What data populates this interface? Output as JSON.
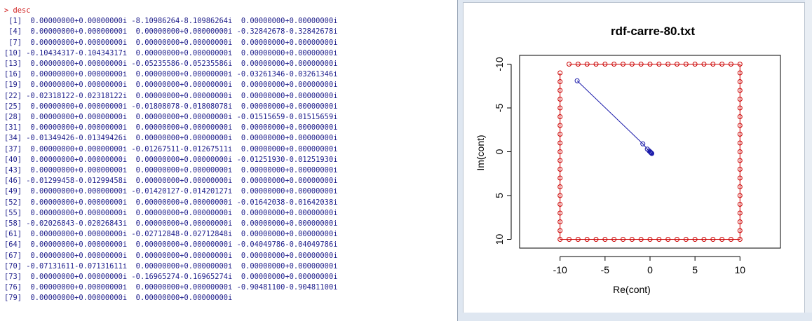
{
  "console": {
    "prompt_symbol": ">",
    "command": "desc",
    "rows": [
      {
        "index": "[1]",
        "values": [
          " 0.00000000+0.00000000i",
          "-8.10986264-8.10986264i",
          " 0.00000000+0.00000000i"
        ]
      },
      {
        "index": "[4]",
        "values": [
          " 0.00000000+0.00000000i",
          " 0.00000000+0.00000000i",
          "-0.32842678-0.32842678i"
        ]
      },
      {
        "index": "[7]",
        "values": [
          " 0.00000000+0.00000000i",
          " 0.00000000+0.00000000i",
          " 0.00000000+0.00000000i"
        ]
      },
      {
        "index": "[10]",
        "values": [
          "-0.10434317-0.10434317i",
          " 0.00000000+0.00000000i",
          " 0.00000000+0.00000000i"
        ]
      },
      {
        "index": "[13]",
        "values": [
          " 0.00000000+0.00000000i",
          "-0.05235586-0.05235586i",
          " 0.00000000+0.00000000i"
        ]
      },
      {
        "index": "[16]",
        "values": [
          " 0.00000000+0.00000000i",
          " 0.00000000+0.00000000i",
          "-0.03261346-0.03261346i"
        ]
      },
      {
        "index": "[19]",
        "values": [
          " 0.00000000+0.00000000i",
          " 0.00000000+0.00000000i",
          " 0.00000000+0.00000000i"
        ]
      },
      {
        "index": "[22]",
        "values": [
          "-0.02318122-0.02318122i",
          " 0.00000000+0.00000000i",
          " 0.00000000+0.00000000i"
        ]
      },
      {
        "index": "[25]",
        "values": [
          " 0.00000000+0.00000000i",
          "-0.01808078-0.01808078i",
          " 0.00000000+0.00000000i"
        ]
      },
      {
        "index": "[28]",
        "values": [
          " 0.00000000+0.00000000i",
          " 0.00000000+0.00000000i",
          "-0.01515659-0.01515659i"
        ]
      },
      {
        "index": "[31]",
        "values": [
          " 0.00000000+0.00000000i",
          " 0.00000000+0.00000000i",
          " 0.00000000+0.00000000i"
        ]
      },
      {
        "index": "[34]",
        "values": [
          "-0.01349426-0.01349426i",
          " 0.00000000+0.00000000i",
          " 0.00000000+0.00000000i"
        ]
      },
      {
        "index": "[37]",
        "values": [
          " 0.00000000+0.00000000i",
          "-0.01267511-0.01267511i",
          " 0.00000000+0.00000000i"
        ]
      },
      {
        "index": "[40]",
        "values": [
          " 0.00000000+0.00000000i",
          " 0.00000000+0.00000000i",
          "-0.01251930-0.01251930i"
        ]
      },
      {
        "index": "[43]",
        "values": [
          " 0.00000000+0.00000000i",
          " 0.00000000+0.00000000i",
          " 0.00000000+0.00000000i"
        ]
      },
      {
        "index": "[46]",
        "values": [
          "-0.01299458-0.01299458i",
          " 0.00000000+0.00000000i",
          " 0.00000000+0.00000000i"
        ]
      },
      {
        "index": "[49]",
        "values": [
          " 0.00000000+0.00000000i",
          "-0.01420127-0.01420127i",
          " 0.00000000+0.00000000i"
        ]
      },
      {
        "index": "[52]",
        "values": [
          " 0.00000000+0.00000000i",
          " 0.00000000+0.00000000i",
          "-0.01642038-0.01642038i"
        ]
      },
      {
        "index": "[55]",
        "values": [
          " 0.00000000+0.00000000i",
          " 0.00000000+0.00000000i",
          " 0.00000000+0.00000000i"
        ]
      },
      {
        "index": "[58]",
        "values": [
          "-0.02026843-0.02026843i",
          " 0.00000000+0.00000000i",
          " 0.00000000+0.00000000i"
        ]
      },
      {
        "index": "[61]",
        "values": [
          " 0.00000000+0.00000000i",
          "-0.02712848-0.02712848i",
          " 0.00000000+0.00000000i"
        ]
      },
      {
        "index": "[64]",
        "values": [
          " 0.00000000+0.00000000i",
          " 0.00000000+0.00000000i",
          "-0.04049786-0.04049786i"
        ]
      },
      {
        "index": "[67]",
        "values": [
          " 0.00000000+0.00000000i",
          " 0.00000000+0.00000000i",
          " 0.00000000+0.00000000i"
        ]
      },
      {
        "index": "[70]",
        "values": [
          "-0.07131611-0.07131611i",
          " 0.00000000+0.00000000i",
          " 0.00000000+0.00000000i"
        ]
      },
      {
        "index": "[73]",
        "values": [
          " 0.00000000+0.00000000i",
          "-0.16965274-0.16965274i",
          " 0.00000000+0.00000000i"
        ]
      },
      {
        "index": "[76]",
        "values": [
          " 0.00000000+0.00000000i",
          " 0.00000000+0.00000000i",
          "-0.90481100-0.90481100i"
        ]
      },
      {
        "index": "[79]",
        "values": [
          " 0.00000000+0.00000000i",
          " 0.00000000+0.00000000i"
        ]
      }
    ]
  },
  "graph": {
    "title": "rdf-carre-80.txt",
    "chart_data": {
      "type": "scatter",
      "title": "rdf-carre-80.txt",
      "xlabel": "Re(cont)",
      "ylabel": "Im(cont)",
      "xlim": [
        -14.5,
        14.5
      ],
      "ylim": [
        -11,
        11
      ],
      "y_axis_reversed": true,
      "xticks": [
        -10,
        -5,
        0,
        5,
        10
      ],
      "yticks": [
        -10,
        -5,
        0,
        5,
        10
      ],
      "xtick_labels": [
        "-10",
        "-5",
        "0",
        "5",
        "10"
      ],
      "ytick_labels": [
        "-10",
        "-5",
        "0",
        "5",
        "10"
      ],
      "grid": false,
      "series": [
        {
          "kind": "square_contour",
          "color": "#cc0000",
          "marker": "open-circle",
          "connected": true,
          "side_min": -10,
          "side_max": 10,
          "points_per_side": 20,
          "gap_corner": [
            -10,
            -10
          ]
        },
        {
          "kind": "descriptor_path",
          "color": "#1a1aaa",
          "marker": "open-circle",
          "connected": true,
          "points": [
            [
              -8.1,
              -8.1
            ],
            [
              -0.8,
              -0.9
            ],
            [
              -0.3,
              -0.3
            ],
            [
              -0.1,
              -0.1
            ],
            [
              0,
              0
            ],
            [
              0.05,
              0.05
            ],
            [
              0.1,
              0.1
            ],
            [
              0.15,
              0.15
            ],
            [
              0.2,
              0.2
            ]
          ]
        }
      ]
    }
  }
}
